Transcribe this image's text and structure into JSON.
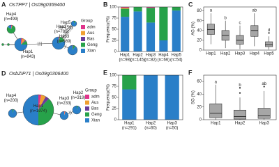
{
  "networks": [
    {
      "panel": "A",
      "title": "OsTPP7 | Os09g0369400",
      "legend_title": "Group",
      "groups": [
        {
          "name": "adm",
          "color": "#e0338b"
        },
        {
          "name": "Aus",
          "color": "#f0a030"
        },
        {
          "name": "Bas",
          "color": "#6a3d9a"
        },
        {
          "name": "Geng",
          "color": "#27a24a"
        },
        {
          "name": "Xian",
          "color": "#2a7fc8"
        }
      ],
      "nodes": [
        {
          "label": "Hap4",
          "n_label": "(n=499)",
          "composition": [
            3,
            2,
            0,
            80,
            15
          ]
        },
        {
          "label": "Hap1",
          "n_label": "(n=843)",
          "composition": [
            4,
            8,
            3,
            10,
            75
          ]
        },
        {
          "label": "Hap2",
          "n_label": "(n=785)",
          "composition": [
            2,
            1,
            0,
            17,
            80
          ]
        },
        {
          "label": "Hap5",
          "n_label": "(n=156)",
          "composition": [
            0,
            0,
            0,
            10,
            90
          ]
        },
        {
          "label": "Hap3",
          "n_label": "(n=569)",
          "composition": [
            2,
            0,
            0,
            8,
            90
          ]
        }
      ]
    },
    {
      "panel": "D",
      "title": "OsbZIP71 | Os09g0306400",
      "legend_title": "Group",
      "groups": [
        {
          "name": "adm",
          "color": "#e0338b"
        },
        {
          "name": "Aus",
          "color": "#f0a030"
        },
        {
          "name": "Bas",
          "color": "#6a3d9a"
        },
        {
          "name": "Geng",
          "color": "#27a24a"
        },
        {
          "name": "Xian",
          "color": "#2a7fc8"
        }
      ],
      "nodes": [
        {
          "label": "Hap4",
          "n_label": "(n=200)",
          "composition": [
            0,
            0,
            0,
            5,
            95
          ]
        },
        {
          "label": "Hap1",
          "n_label": "(n=1974)",
          "composition": [
            3,
            5,
            4,
            38,
            50
          ]
        },
        {
          "label": "Hap3",
          "n_label": "(n=233)",
          "composition": [
            2,
            3,
            0,
            0,
            95
          ]
        },
        {
          "label": "Hap2",
          "n_label": "(n=319)",
          "composition": [
            0,
            0,
            0,
            5,
            95
          ]
        }
      ]
    }
  ],
  "chart_data": [
    {
      "type": "stacked_bar",
      "panel": "B",
      "ylabel": "Frequency(%)",
      "categories": [
        "Hap1",
        "Hap2",
        "Hap3",
        "Hap4",
        "Hap5"
      ],
      "n_labels": [
        "(n=98)",
        "(n=145)",
        "(n=82)",
        "(n=66)",
        "(n=54)"
      ],
      "series": [
        {
          "color": "#e0338b",
          "values": [
            2,
            0,
            2,
            0,
            0
          ]
        },
        {
          "color": "#f0a030",
          "values": [
            2,
            0,
            0,
            0,
            0
          ]
        },
        {
          "color": "#6a3d9a",
          "values": [
            0,
            0,
            0,
            0,
            0
          ]
        },
        {
          "color": "#27a24a",
          "values": [
            18,
            10,
            33,
            75,
            8
          ]
        },
        {
          "color": "#2a7fc8",
          "values": [
            78,
            90,
            65,
            25,
            92
          ]
        }
      ],
      "ylim": [
        0,
        100
      ],
      "yticks": [
        0,
        25,
        50,
        75,
        100
      ]
    },
    {
      "type": "box",
      "panel": "C",
      "ylabel": "AG (%)",
      "color": "#a6a6a6",
      "categories": [
        "Hap1",
        "Hap2",
        "Hap3",
        "Hap4",
        "Hap5"
      ],
      "letters": [
        "a",
        "b",
        "c",
        "ab",
        "d"
      ],
      "boxes": [
        {
          "min": 12,
          "q1": 32,
          "median": 42,
          "q3": 53,
          "max": 75,
          "outliers": []
        },
        {
          "min": 4,
          "q1": 20,
          "median": 30,
          "q3": 40,
          "max": 60,
          "outliers": []
        },
        {
          "min": 2,
          "q1": 12,
          "median": 20,
          "q3": 30,
          "max": 50,
          "outliers": []
        },
        {
          "min": 8,
          "q1": 28,
          "median": 40,
          "q3": 50,
          "max": 75,
          "outliers": []
        },
        {
          "min": 1,
          "q1": 7,
          "median": 11,
          "q3": 17,
          "max": 28,
          "outliers": [
            35
          ]
        }
      ],
      "ylim": [
        0,
        88
      ],
      "yticks": [
        0,
        20,
        40,
        60,
        80
      ]
    },
    {
      "type": "stacked_bar",
      "panel": "E",
      "ylabel": "Frequency(%)",
      "categories": [
        "Hap1",
        "Hap2",
        "Hap3"
      ],
      "n_labels": [
        "(n=291)",
        "(n=60)",
        "(n=50)"
      ],
      "series": [
        {
          "color": "#27a24a",
          "values": [
            32,
            0,
            0
          ]
        },
        {
          "color": "#2a7fc8",
          "values": [
            68,
            100,
            100
          ]
        }
      ],
      "ylim": [
        0,
        100
      ],
      "yticks": [
        0,
        25,
        50,
        75,
        100
      ]
    },
    {
      "type": "box",
      "panel": "F",
      "ylabel": "SG (%)",
      "color": "#a6a6a6",
      "categories": [
        "Hap1",
        "Hap2",
        "Hap3"
      ],
      "letters": [
        "a",
        "b",
        "ab"
      ],
      "boxes": [
        {
          "min": 0,
          "q1": 3,
          "median": 10,
          "q3": 25,
          "max": 55,
          "outliers": []
        },
        {
          "min": 0,
          "q1": 1,
          "median": 5,
          "q3": 15,
          "max": 35,
          "outliers": [
            42,
            50
          ]
        },
        {
          "min": 0,
          "q1": 2,
          "median": 6,
          "q3": 18,
          "max": 45,
          "outliers": [
            52
          ]
        }
      ],
      "ylim": [
        0,
        70
      ],
      "yticks": [
        0,
        20,
        40,
        60
      ]
    }
  ]
}
